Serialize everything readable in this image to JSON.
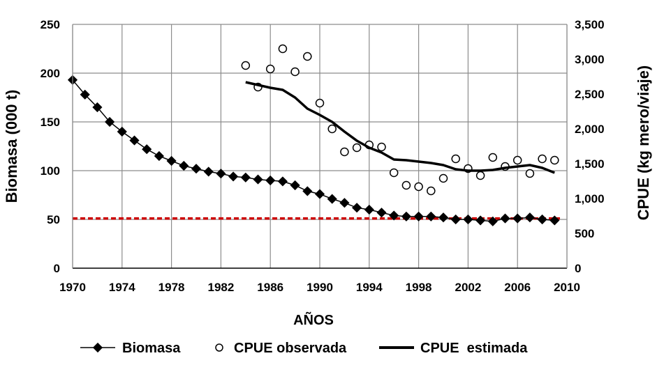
{
  "chart_data": {
    "type": "line",
    "title": "",
    "xlabel": "AÑOS",
    "ylabel_left": "Biomasa (000 t)",
    "ylabel_right": "CPUE (kg mero/viaje)",
    "xlim": [
      1970,
      2010
    ],
    "x_ticks": [
      "1970",
      "1974",
      "1978",
      "1982",
      "1986",
      "1990",
      "1994",
      "1998",
      "2002",
      "2006",
      "2010"
    ],
    "ylim_left": [
      0,
      250
    ],
    "y_ticks_left": [
      "0",
      "50",
      "100",
      "150",
      "200",
      "250"
    ],
    "ylim_right": [
      0,
      3500
    ],
    "y_ticks_right": [
      "0",
      "500",
      "1,000",
      "1,500",
      "2,000",
      "2,500",
      "3,000",
      "3,500"
    ],
    "grid": true,
    "legend_position": "bottom",
    "reference_line": {
      "y": 51,
      "axis": "left",
      "color": "#cc0000"
    },
    "series": [
      {
        "name": "Biomasa",
        "axis": "left",
        "style": "line-diamond",
        "color": "#000000",
        "x": [
          1970,
          1971,
          1972,
          1973,
          1974,
          1975,
          1976,
          1977,
          1978,
          1979,
          1980,
          1981,
          1982,
          1983,
          1984,
          1985,
          1986,
          1987,
          1988,
          1989,
          1990,
          1991,
          1992,
          1993,
          1994,
          1995,
          1996,
          1997,
          1998,
          1999,
          2000,
          2001,
          2002,
          2003,
          2004,
          2005,
          2006,
          2007,
          2008,
          2009
        ],
        "values": [
          193,
          178,
          165,
          150,
          140,
          131,
          122,
          115,
          110,
          105,
          102,
          99,
          97,
          94,
          93,
          91,
          90,
          89,
          85,
          79,
          76,
          71,
          67,
          62,
          60,
          57,
          54,
          53,
          53,
          53,
          52,
          50,
          50,
          49,
          48,
          51,
          51,
          52,
          50,
          49
        ]
      },
      {
        "name": "CPUE observada",
        "axis": "right",
        "style": "open-circle",
        "color": "#000000",
        "x": [
          1984,
          1985,
          1986,
          1987,
          1988,
          1989,
          1990,
          1991,
          1992,
          1993,
          1994,
          1995,
          1996,
          1997,
          1998,
          1999,
          2000,
          2001,
          2002,
          2003,
          2004,
          2005,
          2006,
          2007,
          2008,
          2009
        ],
        "values": [
          2910,
          2600,
          2860,
          3150,
          2820,
          3040,
          2370,
          2000,
          1670,
          1730,
          1770,
          1740,
          1370,
          1190,
          1170,
          1110,
          1290,
          1570,
          1430,
          1330,
          1590,
          1460,
          1550,
          1360,
          1570,
          1550
        ]
      },
      {
        "name": "CPUE  estimada",
        "axis": "right",
        "style": "thick-line",
        "color": "#000000",
        "x": [
          1984,
          1985,
          1986,
          1987,
          1988,
          1989,
          1990,
          1991,
          1992,
          1993,
          1994,
          1995,
          1996,
          1997,
          1998,
          1999,
          2000,
          2001,
          2002,
          2003,
          2004,
          2005,
          2006,
          2007,
          2008,
          2009
        ],
        "values": [
          2670,
          2630,
          2590,
          2560,
          2450,
          2290,
          2200,
          2100,
          1960,
          1830,
          1730,
          1660,
          1560,
          1550,
          1530,
          1510,
          1480,
          1420,
          1400,
          1400,
          1410,
          1440,
          1460,
          1480,
          1440,
          1370
        ]
      }
    ]
  }
}
